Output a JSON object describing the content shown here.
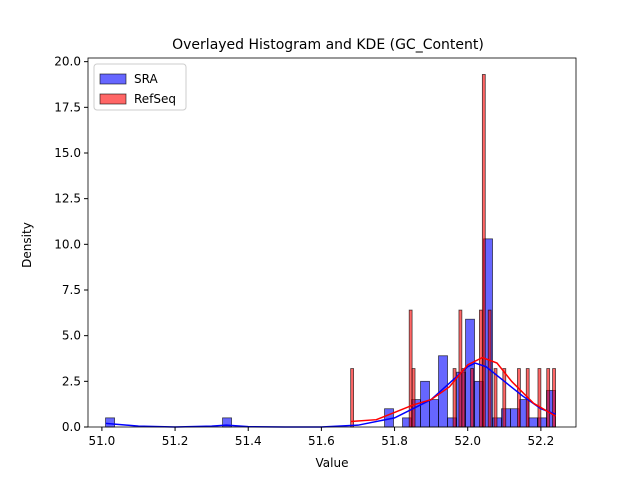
{
  "chart_data": {
    "type": "histogram",
    "title": "Overlayed Histogram and KDE (GC_Content)",
    "x_label": "Value",
    "y_label": "Density",
    "xlim": [
      50.962,
      52.296
    ],
    "ylim": [
      0,
      20.2
    ],
    "xticks": [
      {
        "value": 51.0,
        "label": "51.0"
      },
      51.2,
      51.4,
      51.6,
      51.8,
      {
        "value": 52.0,
        "label": "52.0"
      },
      52.2
    ],
    "yticks": [
      {
        "value": 0,
        "label": "0.0"
      },
      2.5,
      {
        "value": 5,
        "label": "5.0"
      },
      7.5,
      {
        "value": 10,
        "label": "10.0"
      },
      12.5,
      {
        "value": 15,
        "label": "15.0"
      },
      17.5,
      {
        "value": 20,
        "label": "20.0"
      }
    ],
    "legend": "upper left",
    "series": [
      {
        "name": "SRA",
        "color": "#0000ff",
        "bins": [
          51.01,
          51.0346,
          51.0592,
          51.0838,
          51.1084,
          51.133,
          51.1576,
          51.1822,
          51.2068,
          51.2314,
          51.256,
          51.2806,
          51.3052,
          51.3298,
          51.3544,
          51.379,
          51.4036,
          51.4282,
          51.4528,
          51.4774,
          51.502,
          51.5266,
          51.5512,
          51.5758,
          51.6004,
          51.625,
          51.6496,
          51.6742,
          51.6988,
          51.7234,
          51.748,
          51.7726,
          51.7972,
          51.8218,
          51.8464,
          51.871,
          51.8956,
          51.9202,
          51.9448,
          51.9694,
          51.994,
          52.0186,
          52.0432,
          52.0678,
          52.0924,
          52.117,
          52.1416,
          52.1662,
          52.1908,
          52.2154,
          52.24
        ],
        "values": [
          0.5,
          0,
          0,
          0,
          0,
          0,
          0,
          0,
          0,
          0,
          0,
          0,
          0,
          0.5,
          0,
          0,
          0,
          0,
          0,
          0,
          0,
          0,
          0,
          0,
          0,
          0,
          0,
          0,
          0,
          0,
          0,
          1,
          0,
          0.5,
          1.5,
          2.5,
          1.5,
          3.9,
          0.5,
          3,
          5.9,
          2.5,
          10.3,
          0.5,
          1,
          1,
          1.5,
          0.5,
          0.5,
          2
        ],
        "kde": {
          "x": [
            51.01,
            51.1,
            51.2,
            51.3,
            51.34,
            51.4,
            51.5,
            51.6,
            51.7,
            51.8,
            51.9,
            51.95,
            52.0,
            52.02,
            52.05,
            52.1,
            52.15,
            52.2,
            52.24
          ],
          "values": [
            0.2,
            0.05,
            0,
            0.05,
            0.1,
            0.02,
            0,
            0,
            0.1,
            0.5,
            1.5,
            2.4,
            3.3,
            3.5,
            3.3,
            2.5,
            1.7,
            1.0,
            0.7
          ]
        }
      },
      {
        "name": "RefSeq",
        "color": "#ff0000",
        "bins": [
          51.68,
          51.688,
          51.696,
          51.704,
          51.712,
          51.72,
          51.728,
          51.736,
          51.744,
          51.752,
          51.76,
          51.768,
          51.776,
          51.784,
          51.792,
          51.8,
          51.808,
          51.816,
          51.824,
          51.832,
          51.84,
          51.848,
          51.856,
          51.864,
          51.872,
          51.88,
          51.888,
          51.896,
          51.904,
          51.912,
          51.92,
          51.928,
          51.936,
          51.944,
          51.952,
          51.96,
          51.968,
          51.976,
          51.984,
          51.992,
          52.0,
          52.008,
          52.016,
          52.024,
          52.032,
          52.04,
          52.048,
          52.056,
          52.064,
          52.072,
          52.08,
          52.088,
          52.096,
          52.104,
          52.112,
          52.12,
          52.128,
          52.136,
          52.144,
          52.152,
          52.16,
          52.168,
          52.176,
          52.184,
          52.192,
          52.2,
          52.208,
          52.216,
          52.224,
          52.232,
          52.24
        ],
        "values": [
          3.2,
          0,
          0,
          0,
          0,
          0,
          0,
          0,
          0,
          0,
          0,
          0,
          0,
          0,
          0,
          0,
          0,
          0,
          0,
          0,
          6.4,
          3.2,
          0,
          0,
          0,
          0,
          0,
          0,
          0,
          0,
          0,
          0,
          0,
          0,
          0,
          3.2,
          0,
          6.4,
          3.2,
          0,
          0,
          3.2,
          0,
          0,
          6.4,
          19.3,
          0,
          6.4,
          0,
          3.2,
          0,
          0,
          3.2,
          0,
          0,
          0,
          0,
          3.2,
          0,
          0,
          3.2,
          0,
          0,
          0,
          3.2,
          0,
          0,
          3.2,
          0,
          3.2
        ],
        "kde": {
          "x": [
            51.68,
            51.75,
            51.8,
            51.85,
            51.9,
            51.95,
            52.0,
            52.04,
            52.08,
            52.12,
            52.18,
            52.24
          ],
          "values": [
            0.3,
            0.4,
            0.8,
            1.2,
            1.5,
            2.2,
            3.4,
            3.8,
            3.5,
            2.5,
            1.3,
            0.6
          ]
        }
      }
    ]
  }
}
